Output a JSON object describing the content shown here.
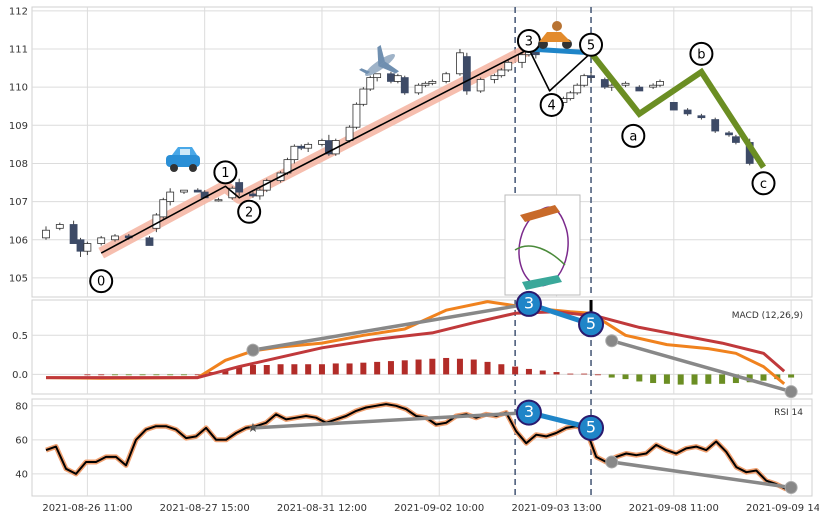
{
  "chart_data": {
    "type": "candlestick-elliott-wave",
    "x_tick_labels": [
      "2021-08-26 11:00",
      "2021-08-27 15:00",
      "2021-08-31 12:00",
      "2021-09-02 10:00",
      "2021-09-03 13:00",
      "2021-09-08 11:00",
      "2021-09-09 14:00"
    ],
    "x_tick_index": [
      6,
      23,
      40,
      57,
      74,
      91,
      108
    ],
    "vline_index": [
      68,
      79
    ],
    "colors": {
      "up": "#ffffff",
      "down": "#3d4a66",
      "wave": "#000000",
      "wave_glow": "#f4b3a0",
      "abc": "#6b8e23",
      "connector": "#1f85c8",
      "macd": "#f0821e",
      "signal": "#c0393b",
      "hist_pos": "#b22c28",
      "hist_neg": "#6b8e23",
      "rsi": "#000000",
      "rsi_glow": "#f0a070",
      "divergence": "#888888",
      "vline": "#4e5f7c"
    },
    "price": {
      "ylim": [
        104.5,
        112.1
      ],
      "yticks": [
        105,
        106,
        107,
        108,
        109,
        110,
        111,
        112
      ],
      "candles": [
        [
          106.05,
          106.35,
          106.0,
          106.25
        ],
        [
          106.3,
          106.45,
          106.25,
          106.4
        ],
        [
          106.4,
          106.5,
          105.9,
          105.9
        ],
        [
          106.0,
          106.05,
          105.55,
          105.7
        ],
        [
          105.7,
          105.95,
          105.6,
          105.9
        ],
        [
          105.9,
          106.1,
          105.85,
          106.05
        ],
        [
          106.0,
          106.15,
          105.95,
          106.1
        ],
        [
          106.1,
          106.15,
          106.0,
          106.05
        ],
        [
          106.05,
          106.1,
          105.85,
          105.85
        ],
        [
          106.3,
          106.7,
          106.2,
          106.65
        ],
        [
          106.6,
          107.1,
          106.55,
          107.05
        ],
        [
          107.0,
          107.35,
          106.9,
          107.25
        ],
        [
          107.25,
          107.3,
          107.2,
          107.3
        ],
        [
          107.3,
          107.35,
          107.25,
          107.25
        ],
        [
          107.25,
          107.3,
          107.1,
          107.1
        ],
        [
          107.05,
          107.1,
          107.0,
          107.05
        ],
        [
          107.1,
          107.4,
          107.05,
          107.35
        ],
        [
          107.5,
          107.6,
          107.15,
          107.25
        ],
        [
          107.2,
          107.25,
          107.1,
          107.15
        ],
        [
          107.15,
          107.35,
          107.05,
          107.3
        ],
        [
          107.3,
          107.6,
          107.25,
          107.55
        ],
        [
          107.55,
          107.8,
          107.5,
          107.75
        ],
        [
          107.75,
          108.15,
          107.7,
          108.1
        ],
        [
          108.1,
          108.5,
          108.0,
          108.45
        ],
        [
          108.45,
          108.5,
          108.35,
          108.4
        ],
        [
          108.4,
          108.55,
          108.3,
          108.5
        ],
        [
          108.5,
          108.65,
          108.45,
          108.6
        ],
        [
          108.6,
          108.75,
          108.2,
          108.25
        ],
        [
          108.25,
          108.65,
          108.2,
          108.6
        ],
        [
          108.6,
          109.0,
          108.55,
          108.95
        ],
        [
          108.95,
          109.6,
          108.9,
          109.55
        ],
        [
          109.55,
          110.0,
          109.5,
          109.95
        ],
        [
          109.95,
          110.3,
          109.9,
          110.25
        ],
        [
          110.25,
          110.35,
          110.15,
          110.35
        ],
        [
          110.35,
          110.4,
          110.1,
          110.15
        ],
        [
          110.15,
          110.35,
          110.1,
          110.3
        ],
        [
          110.25,
          110.3,
          109.8,
          109.85
        ],
        [
          109.85,
          110.1,
          109.8,
          110.05
        ],
        [
          110.05,
          110.15,
          110.0,
          110.1
        ],
        [
          110.1,
          110.2,
          110.05,
          110.15
        ],
        [
          110.15,
          110.4,
          110.1,
          110.35
        ],
        [
          110.35,
          111.0,
          110.3,
          110.9
        ],
        [
          110.8,
          110.9,
          109.8,
          109.9
        ],
        [
          109.9,
          110.25,
          109.85,
          110.2
        ],
        [
          110.2,
          110.35,
          110.1,
          110.3
        ],
        [
          110.3,
          110.5,
          110.25,
          110.45
        ],
        [
          110.45,
          110.7,
          110.4,
          110.65
        ],
        [
          110.65,
          110.9,
          110.5,
          110.85
        ],
        [
          110.85,
          111.05,
          110.8,
          111.0
        ],
        [
          110.95,
          111.0,
          110.75,
          110.85
        ],
        [
          109.65,
          109.7,
          109.4,
          109.4
        ],
        [
          109.4,
          109.7,
          109.3,
          109.6
        ],
        [
          109.6,
          109.75,
          109.5,
          109.7
        ],
        [
          109.7,
          109.9,
          109.65,
          109.85
        ],
        [
          109.85,
          110.1,
          109.8,
          110.05
        ],
        [
          110.05,
          110.35,
          110.0,
          110.3
        ],
        [
          110.3,
          110.4,
          110.15,
          110.25
        ],
        [
          110.2,
          110.25,
          109.95,
          110.0
        ],
        [
          110.0,
          110.1,
          109.9,
          110.05
        ],
        [
          110.05,
          110.15,
          110.0,
          110.1
        ],
        [
          110.0,
          110.05,
          109.9,
          109.9
        ],
        [
          110.0,
          110.1,
          109.95,
          110.05
        ],
        [
          110.05,
          110.2,
          110.0,
          110.15
        ],
        [
          109.6,
          109.6,
          109.4,
          109.4
        ],
        [
          109.4,
          109.45,
          109.25,
          109.3
        ],
        [
          109.25,
          109.3,
          109.15,
          109.2
        ],
        [
          109.15,
          109.2,
          108.8,
          108.85
        ],
        [
          108.8,
          108.85,
          108.7,
          108.75
        ],
        [
          108.7,
          108.75,
          108.5,
          108.55
        ],
        [
          108.55,
          108.65,
          107.95,
          108.0
        ]
      ],
      "candle_index": [
        0,
        2,
        4,
        5,
        6,
        8,
        10,
        12,
        15,
        16,
        17,
        18,
        20,
        22,
        23,
        25,
        27,
        28,
        30,
        31,
        32,
        34,
        35,
        36,
        37,
        38,
        40,
        41,
        42,
        44,
        45,
        46,
        47,
        48,
        50,
        51,
        52,
        54,
        55,
        56,
        58,
        60,
        61,
        63,
        65,
        66,
        67,
        69,
        70,
        71,
        73,
        74,
        75,
        76,
        77,
        78,
        79,
        81,
        82,
        84,
        86,
        88,
        89,
        91,
        93,
        95,
        97,
        99,
        100,
        102
      ],
      "wave_points": [
        {
          "i": 8,
          "y": 105.65,
          "label": "0"
        },
        {
          "i": 26,
          "y": 107.4,
          "label": "1"
        },
        {
          "i": 28,
          "y": 107.1,
          "label": "2"
        },
        {
          "i": 70,
          "y": 111.0,
          "label": "3"
        },
        {
          "i": 73,
          "y": 109.9,
          "label": "4"
        },
        {
          "i": 79,
          "y": 110.9,
          "label": "5"
        }
      ],
      "abc_points": [
        {
          "i": 79,
          "y": 110.9
        },
        {
          "i": 86,
          "y": 109.3,
          "label": "a"
        },
        {
          "i": 95,
          "y": 110.4,
          "label": "b"
        },
        {
          "i": 104,
          "y": 107.9,
          "label": "c"
        }
      ],
      "connector": [
        {
          "i": 70,
          "y": 111.0
        },
        {
          "i": 79,
          "y": 110.9
        }
      ]
    },
    "macd": {
      "label": "MACD (12,26,9)",
      "ylim": [
        -0.25,
        0.95
      ],
      "yticks": [
        0.0,
        0.5
      ],
      "macd_values": [
        -0.04,
        -0.04,
        -0.05,
        -0.05,
        -0.05,
        -0.05,
        -0.05,
        -0.05,
        -0.04,
        0.06,
        0.18,
        0.26,
        0.31,
        0.33,
        0.35,
        0.36,
        0.37,
        0.4,
        0.43,
        0.46,
        0.5,
        0.53,
        0.56,
        0.58,
        0.58,
        0.62,
        0.7,
        0.8,
        0.88,
        0.93,
        0.9,
        0.86,
        0.85,
        0.84,
        0.82,
        0.78,
        0.7,
        0.6,
        0.5,
        0.43,
        0.38,
        0.35,
        0.33,
        0.3,
        0.27,
        0.23,
        0.18,
        0.1,
        -0.1
      ],
      "signal_values": [
        -0.04,
        -0.04,
        -0.04,
        -0.04,
        -0.04,
        -0.04,
        -0.04,
        -0.04,
        -0.04,
        0.0,
        0.06,
        0.12,
        0.17,
        0.21,
        0.24,
        0.27,
        0.3,
        0.33,
        0.36,
        0.39,
        0.42,
        0.45,
        0.48,
        0.51,
        0.53,
        0.55,
        0.58,
        0.62,
        0.67,
        0.72,
        0.76,
        0.79,
        0.8,
        0.8,
        0.79,
        0.76,
        0.72,
        0.66,
        0.6,
        0.55,
        0.51,
        0.47,
        0.43,
        0.4,
        0.37,
        0.33,
        0.29,
        0.24,
        0.04
      ],
      "hist": [
        0.0,
        0.0,
        -0.01,
        -0.01,
        -0.01,
        -0.01,
        -0.01,
        -0.01,
        0.0,
        0.03,
        0.06,
        0.1,
        0.12,
        0.12,
        0.13,
        0.13,
        0.13,
        0.13,
        0.14,
        0.14,
        0.15,
        0.16,
        0.17,
        0.18,
        0.19,
        0.2,
        0.21,
        0.2,
        0.19,
        0.16,
        0.13,
        0.1,
        0.07,
        0.05,
        0.03,
        0.01,
        0.01,
        0.0,
        -0.04,
        -0.06,
        -0.09,
        -0.11,
        -0.12,
        -0.13,
        -0.13,
        -0.12,
        -0.12,
        -0.11,
        -0.1,
        -0.08,
        -0.06,
        -0.04,
        -0.2
      ],
      "macd_points": [
        {
          "i": 0,
          "y": -0.04
        },
        {
          "i": 8,
          "y": -0.05
        },
        {
          "i": 22,
          "y": -0.04
        },
        {
          "i": 26,
          "y": 0.18
        },
        {
          "i": 30,
          "y": 0.3
        },
        {
          "i": 34,
          "y": 0.35
        },
        {
          "i": 40,
          "y": 0.4
        },
        {
          "i": 46,
          "y": 0.5
        },
        {
          "i": 52,
          "y": 0.58
        },
        {
          "i": 58,
          "y": 0.82
        },
        {
          "i": 64,
          "y": 0.93
        },
        {
          "i": 70,
          "y": 0.85
        },
        {
          "i": 76,
          "y": 0.8
        },
        {
          "i": 79,
          "y": 0.78
        },
        {
          "i": 84,
          "y": 0.5
        },
        {
          "i": 90,
          "y": 0.38
        },
        {
          "i": 96,
          "y": 0.33
        },
        {
          "i": 100,
          "y": 0.27
        },
        {
          "i": 104,
          "y": 0.1
        },
        {
          "i": 107,
          "y": -0.12
        }
      ],
      "signal_points": [
        {
          "i": 0,
          "y": -0.04
        },
        {
          "i": 22,
          "y": -0.04
        },
        {
          "i": 28,
          "y": 0.1
        },
        {
          "i": 34,
          "y": 0.22
        },
        {
          "i": 40,
          "y": 0.34
        },
        {
          "i": 48,
          "y": 0.45
        },
        {
          "i": 56,
          "y": 0.53
        },
        {
          "i": 62,
          "y": 0.66
        },
        {
          "i": 68,
          "y": 0.78
        },
        {
          "i": 74,
          "y": 0.8
        },
        {
          "i": 80,
          "y": 0.74
        },
        {
          "i": 86,
          "y": 0.6
        },
        {
          "i": 92,
          "y": 0.5
        },
        {
          "i": 98,
          "y": 0.4
        },
        {
          "i": 104,
          "y": 0.27
        },
        {
          "i": 107,
          "y": 0.04
        }
      ],
      "hist_start": 6,
      "divergence_a": [
        {
          "i": 30,
          "y": 0.31
        },
        {
          "i": 70,
          "y": 0.9
        }
      ],
      "divergence_b": [
        {
          "i": 82,
          "y": 0.43
        },
        {
          "i": 108,
          "y": -0.22
        }
      ],
      "connector": [
        {
          "i": 70,
          "y": 0.9
        },
        {
          "i": 79,
          "y": 0.64
        }
      ],
      "labels": {
        "first": "3",
        "second": "5"
      }
    },
    "rsi": {
      "label": "RSI 14",
      "ylim": [
        27,
        84
      ],
      "yticks": [
        40,
        60,
        80
      ],
      "values": [
        54,
        56,
        43,
        40,
        47,
        47,
        50,
        50,
        45,
        60,
        66,
        68,
        68,
        66,
        61,
        62,
        67,
        60,
        60,
        64,
        67,
        68,
        70,
        75,
        72,
        73,
        74,
        73,
        70,
        72,
        74,
        77,
        79,
        80,
        81,
        80,
        78,
        74,
        73,
        69,
        70,
        74,
        75,
        73,
        75,
        74,
        76,
        65,
        58,
        63,
        62,
        64,
        67,
        68,
        66,
        50,
        47,
        50,
        52,
        51,
        52,
        57,
        54,
        52,
        55,
        56,
        54,
        59,
        53,
        44,
        41,
        42,
        36,
        34,
        31
      ],
      "value_index_step": 1.45,
      "star_point": {
        "i": 30,
        "y": 67
      },
      "divergence_a": [
        {
          "i": 30,
          "y": 67
        },
        {
          "i": 70,
          "y": 76
        }
      ],
      "divergence_b": [
        {
          "i": 82,
          "y": 47
        },
        {
          "i": 108,
          "y": 32
        }
      ],
      "connector": [
        {
          "i": 70,
          "y": 76
        },
        {
          "i": 79,
          "y": 67
        }
      ],
      "labels": {
        "first": "3",
        "second": "5"
      }
    }
  }
}
